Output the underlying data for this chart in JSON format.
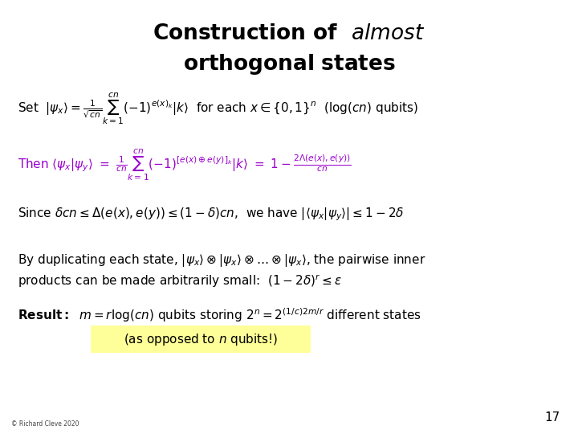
{
  "background_color": "#ffffff",
  "text_color": "#000000",
  "purple_color": "#9900cc",
  "highlight_color": "#ffff99",
  "slide_number": "17",
  "copyright": "© Richard Cleve 2020",
  "title_fs": 19,
  "body_fs": 11,
  "result_fs": 11
}
